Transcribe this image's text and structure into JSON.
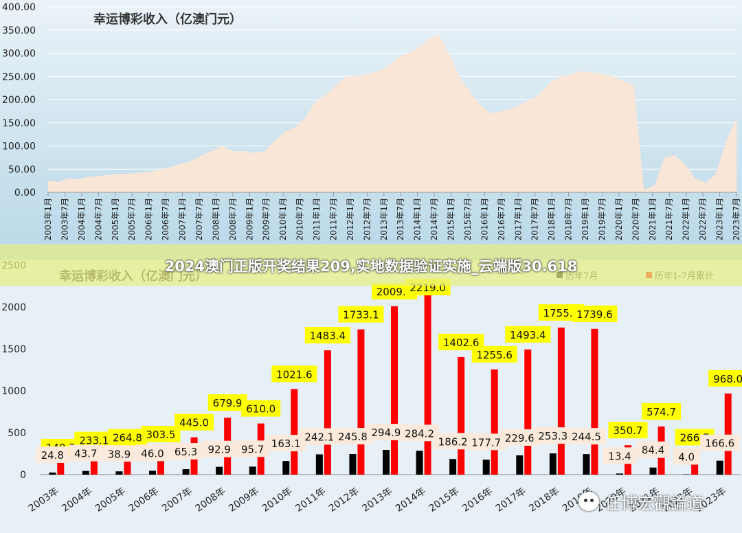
{
  "banner": {
    "text": "2024澳门正版开奖结果209,实地数据验证实施_云端版30.618"
  },
  "watermark": {
    "text": "任博宏觀論道"
  },
  "chart_data": [
    {
      "type": "area",
      "title": "幸运博彩收入（亿澳门元）",
      "ylim": [
        0,
        400
      ],
      "y_ticks": [
        "0.00",
        "50.00",
        "100.00",
        "150.00",
        "200.00",
        "250.00",
        "300.00",
        "350.00",
        "400.00"
      ],
      "x_ticks": [
        "2003年1月",
        "2003年7月",
        "2004年1月",
        "2004年7月",
        "2005年1月",
        "2005年7月",
        "2006年1月",
        "2006年7月",
        "2007年1月",
        "2007年7月",
        "2008年1月",
        "2008年7月",
        "2009年1月",
        "2009年7月",
        "2010年1月",
        "2010年7月",
        "2011年1月",
        "2011年7月",
        "2012年1月",
        "2012年7月",
        "2013年1月",
        "2013年7月",
        "2014年1月",
        "2014年7月",
        "2015年1月",
        "2015年7月",
        "2016年1月",
        "2016年7月",
        "2017年1月",
        "2017年7月",
        "2018年1月",
        "2018年7月",
        "2019年1月",
        "2019年7月",
        "2020年1月",
        "2020年7月",
        "2021年1月",
        "2021年7月",
        "2022年1月",
        "2022年7月",
        "2023年1月",
        "2023年7月"
      ],
      "values": [
        25,
        22,
        30,
        28,
        34,
        35,
        38,
        40,
        40,
        42,
        45,
        50,
        55,
        62,
        68,
        80,
        90,
        100,
        88,
        90,
        85,
        88,
        110,
        130,
        140,
        160,
        195,
        210,
        230,
        250,
        250,
        255,
        260,
        270,
        290,
        300,
        310,
        330,
        340,
        300,
        250,
        220,
        190,
        170,
        175,
        180,
        190,
        200,
        215,
        240,
        250,
        255,
        262,
        258,
        255,
        250,
        240,
        230,
        5,
        15,
        75,
        80,
        60,
        30,
        20,
        40,
        110,
        160
      ],
      "fill": "#fae6d6",
      "grid": true
    },
    {
      "type": "bar",
      "title": "幸运博彩收入（亿澳门元）",
      "categories": [
        "2003年",
        "2004年",
        "2005年",
        "2006年",
        "2007年",
        "2008年",
        "2009年",
        "2010年",
        "2011年",
        "2012年",
        "2013年",
        "2014年",
        "2015年",
        "2016年",
        "2017年",
        "2018年",
        "2019年",
        "2020年",
        "2021年",
        "2022年",
        "2023年"
      ],
      "ylim": [
        0,
        2500
      ],
      "y_ticks": [
        "0",
        "500",
        "1000",
        "1500",
        "2000",
        "2500"
      ],
      "legend_position": "top-right",
      "series": [
        {
          "name": "历年7月",
          "color": "#000000",
          "values": [
            24.8,
            43.7,
            38.9,
            46.0,
            65.3,
            92.9,
            95.7,
            163.1,
            242.1,
            245.8,
            294.9,
            284.2,
            186.2,
            177.7,
            229.6,
            253.3,
            244.5,
            13.4,
            84.4,
            4.0,
            166.6
          ]
        },
        {
          "name": "历年1-7月累计",
          "color": "#ff0000",
          "values": [
            148.3,
            233.1,
            264.8,
            303.5,
            445.0,
            679.9,
            610.0,
            1021.6,
            1483.4,
            1733.1,
            2009.3,
            2219.0,
            1402.6,
            1255.6,
            1493.4,
            1755.4,
            1739.6,
            350.7,
            574.7,
            266.7,
            968.0
          ]
        }
      ],
      "data_labels": {
        "black": [
          "24.8",
          "43.7",
          "38.9",
          "46.0",
          "65.3",
          "92.9",
          "95.7",
          "163.1",
          "242.1",
          "245.8",
          "294.9",
          "284.2",
          "186.2",
          "177.7",
          "229.6",
          "253.3",
          "244.5",
          "13.4",
          "84.4",
          "4.0",
          "166.6"
        ],
        "red": [
          "148.3",
          "233.1",
          "264.8",
          "303.5",
          "445.0",
          "679.9",
          "610.0",
          "1021.6",
          "1483.4",
          "1733.1",
          "2009.3",
          "2219.0",
          "1402.6",
          "1255.6",
          "1493.4",
          "1755.4",
          "1739.6",
          "350.7",
          "574.7",
          "266.7",
          "968.0"
        ]
      },
      "colors": {
        "label_black_bg": "#fbeadb",
        "label_red_bg": "#ffff00"
      }
    }
  ]
}
